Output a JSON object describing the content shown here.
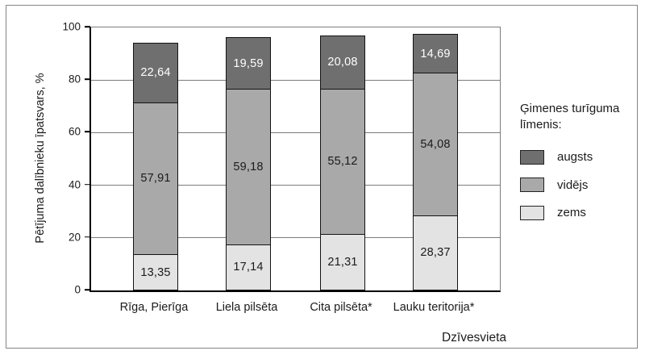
{
  "chart_data": {
    "type": "bar",
    "stacked": true,
    "categories": [
      "Rīga, Pierīga",
      "Liela pilsēta",
      "Cita pilsēta*",
      "Lauku teritorija*"
    ],
    "series": [
      {
        "name": "zems",
        "color": "#e3e3e3",
        "label_color": "#1b1b1b",
        "values": [
          13.35,
          17.14,
          21.31,
          28.37
        ]
      },
      {
        "name": "vidējs",
        "color": "#a9a9a9",
        "label_color": "#1b1b1b",
        "values": [
          57.91,
          59.18,
          55.12,
          54.08
        ]
      },
      {
        "name": "augsts",
        "color": "#6f6f6f",
        "label_color": "#ffffff",
        "values": [
          22.64,
          19.59,
          20.08,
          14.69
        ]
      }
    ],
    "xlabel": "Dzīvesvieta",
    "ylabel": "Pētījuma dalībnieku īpatsvars, %",
    "ylim": [
      0,
      100
    ],
    "yticks": [
      0,
      20,
      40,
      60,
      80,
      100
    ],
    "grid": true,
    "decimal_separator": ",",
    "legend": {
      "title": "Ģimenes turīguma līmenis:",
      "position": "right",
      "items": [
        "augsts",
        "vidējs",
        "zems"
      ]
    }
  }
}
